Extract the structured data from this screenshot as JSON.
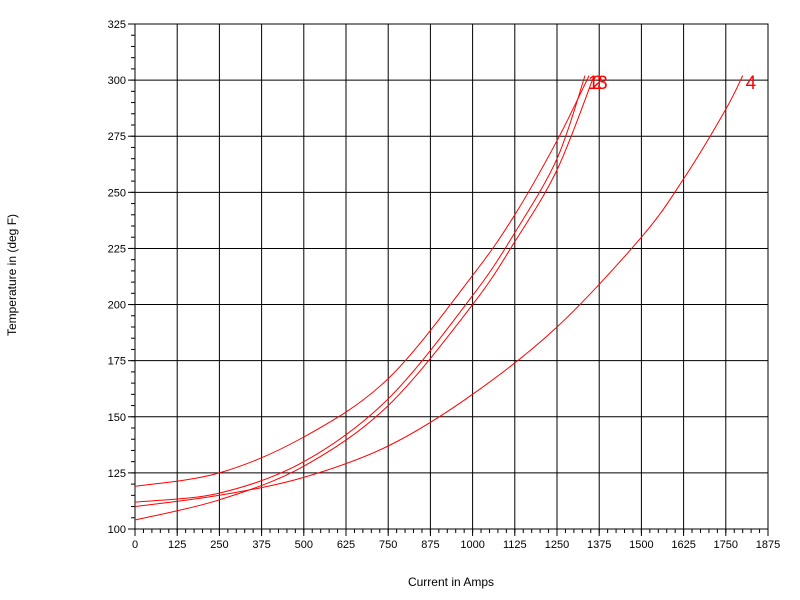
{
  "chart_data": {
    "type": "line",
    "title": "",
    "xlabel": "Current in Amps",
    "ylabel": "Temperature in (deg F)",
    "xlim": [
      0,
      1875
    ],
    "ylim": [
      100,
      325
    ],
    "x_ticks": [
      0,
      125,
      250,
      375,
      500,
      625,
      750,
      875,
      1000,
      1125,
      1250,
      1375,
      1500,
      1625,
      1750,
      1875
    ],
    "y_ticks": [
      100,
      125,
      150,
      175,
      200,
      225,
      250,
      275,
      300,
      325
    ],
    "grid": true,
    "line_color": "#ff0000",
    "series": [
      {
        "name": "1",
        "x": [
          0,
          250,
          500,
          750,
          1000,
          1125,
          1250,
          1333
        ],
        "y": [
          112,
          116,
          130,
          158,
          204,
          232,
          265,
          302
        ]
      },
      {
        "name": "2",
        "x": [
          0,
          250,
          500,
          750,
          1000,
          1125,
          1250,
          1345
        ],
        "y": [
          119,
          125,
          141,
          167,
          213,
          240,
          273,
          302
        ]
      },
      {
        "name": "3",
        "x": [
          0,
          250,
          500,
          750,
          1000,
          1125,
          1250,
          1360
        ],
        "y": [
          104,
          113,
          128,
          155,
          200,
          228,
          260,
          302
        ]
      },
      {
        "name": "4",
        "x": [
          0,
          250,
          500,
          750,
          1000,
          1250,
          1500,
          1625,
          1750,
          1800
        ],
        "y": [
          110,
          115,
          123,
          137,
          160,
          190,
          230,
          256,
          287,
          302
        ]
      }
    ],
    "label_text": "1 2 3 4"
  }
}
